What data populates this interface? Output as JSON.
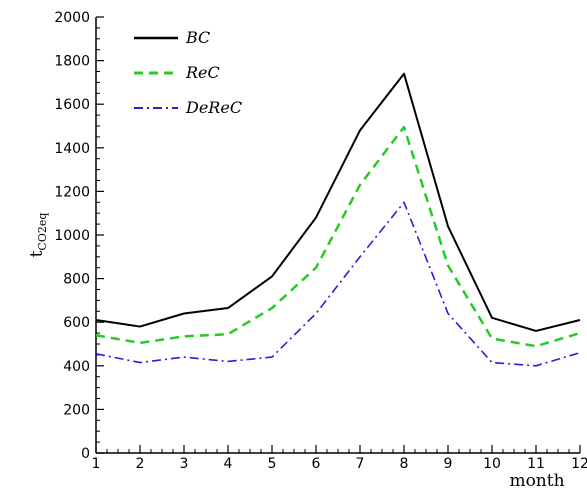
{
  "chart_data": {
    "type": "line",
    "xlabel": "month",
    "ylabel": "t",
    "ylabel_sub": "CO2eq",
    "x": [
      1,
      2,
      3,
      4,
      5,
      6,
      7,
      8,
      9,
      10,
      11,
      12
    ],
    "xlim": [
      1,
      12
    ],
    "ylim": [
      0,
      2000
    ],
    "yticks": [
      0,
      200,
      400,
      600,
      800,
      1000,
      1200,
      1400,
      1600,
      1800,
      2000
    ],
    "xticks": [
      1,
      2,
      3,
      4,
      5,
      6,
      7,
      8,
      9,
      10,
      11,
      12
    ],
    "grid": false,
    "legend_position": "top-left",
    "series": [
      {
        "name": "BC",
        "color": "#000000",
        "style": "solid",
        "values": [
          610,
          580,
          640,
          665,
          810,
          1080,
          1480,
          1740,
          1040,
          620,
          560,
          610
        ]
      },
      {
        "name": "ReC",
        "color": "#22cc22",
        "style": "dashed",
        "values": [
          540,
          505,
          535,
          545,
          665,
          850,
          1230,
          1495,
          860,
          525,
          490,
          550
        ]
      },
      {
        "name": "DeReC",
        "color": "#2222dd",
        "style": "dashdot",
        "values": [
          455,
          415,
          440,
          420,
          440,
          640,
          900,
          1150,
          640,
          415,
          400,
          460
        ]
      }
    ]
  }
}
